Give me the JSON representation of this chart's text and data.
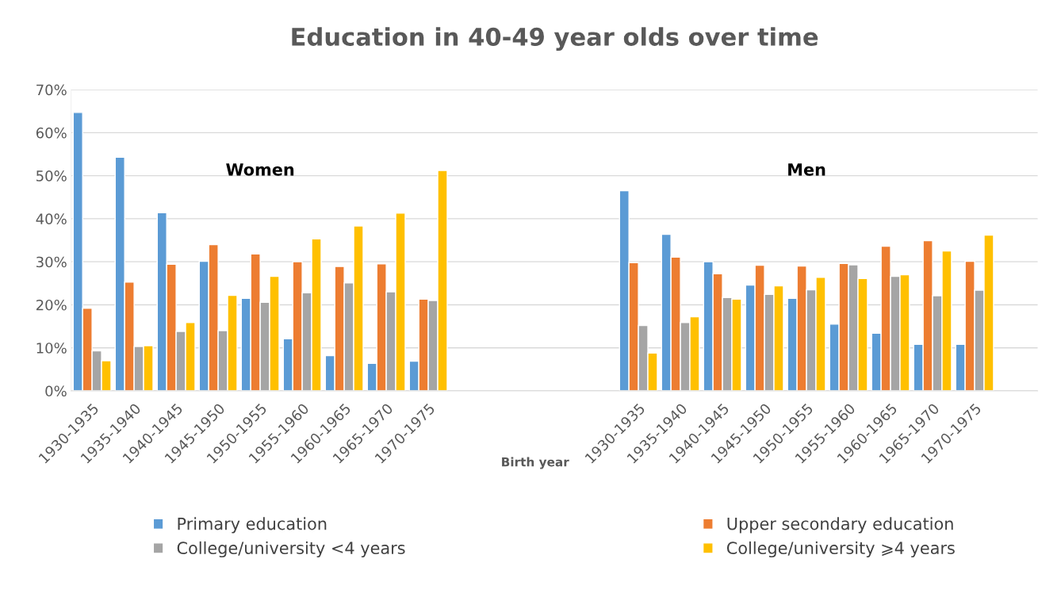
{
  "chart_data": {
    "type": "bar",
    "title": "Education in 40-49 year olds over time",
    "xlabel": "Birth year",
    "categories": [
      "1930-1935",
      "1935-1940",
      "1940-1945",
      "1945-1950",
      "1950-1955",
      "1955-1960",
      "1960-1965",
      "1965-1970",
      "1970-1975",
      null,
      null,
      null,
      null,
      "1930-1935",
      "1935-1940",
      "1940-1945",
      "1945-1950",
      "1950-1955",
      "1955-1960",
      "1960-1965",
      "1965-1970",
      "1970-1975",
      null
    ],
    "series": [
      {
        "name": "Primary education",
        "color": "#5b9bd5",
        "values": [
          64.7,
          54.3,
          41.4,
          30.1,
          21.5,
          12.1,
          8.2,
          6.4,
          6.9,
          null,
          null,
          null,
          null,
          46.5,
          36.4,
          30.0,
          24.6,
          21.5,
          15.5,
          13.4,
          10.8,
          10.8,
          null
        ]
      },
      {
        "name": "Upper secondary education",
        "color": "#ed7d31",
        "values": [
          19.2,
          25.3,
          29.4,
          34.0,
          31.8,
          30.0,
          28.9,
          29.5,
          21.3,
          null,
          null,
          null,
          null,
          29.8,
          31.1,
          27.2,
          29.2,
          29.0,
          29.6,
          33.6,
          34.9,
          30.1,
          null
        ]
      },
      {
        "name": "College/university <4 years",
        "color": "#a5a5a5",
        "values": [
          9.3,
          10.3,
          13.8,
          14.0,
          20.6,
          22.8,
          25.1,
          23.0,
          21.0,
          null,
          null,
          null,
          null,
          15.2,
          15.9,
          21.7,
          22.4,
          23.5,
          29.3,
          26.6,
          22.1,
          23.4,
          null
        ]
      },
      {
        "name": "College/university ⩾4 years",
        "color": "#ffc000",
        "values": [
          7.0,
          10.5,
          15.9,
          22.2,
          26.6,
          35.3,
          38.3,
          41.3,
          51.2,
          null,
          null,
          null,
          null,
          8.8,
          17.2,
          21.3,
          24.4,
          26.4,
          26.1,
          27.0,
          32.5,
          36.2,
          null
        ]
      }
    ],
    "annotations": [
      "Women",
      "Men"
    ],
    "ylim": [
      0,
      70
    ],
    "yticks": [
      {
        "value": 0,
        "label": "0%"
      },
      {
        "value": 10,
        "label": "10%"
      },
      {
        "value": 20,
        "label": "20%"
      },
      {
        "value": 30,
        "label": "30%"
      },
      {
        "value": 40,
        "label": "40%"
      },
      {
        "value": 50,
        "label": "50%"
      },
      {
        "value": 60,
        "label": "60%"
      },
      {
        "value": 70,
        "label": "70%"
      }
    ],
    "grid": "y",
    "legend": "bottom"
  }
}
